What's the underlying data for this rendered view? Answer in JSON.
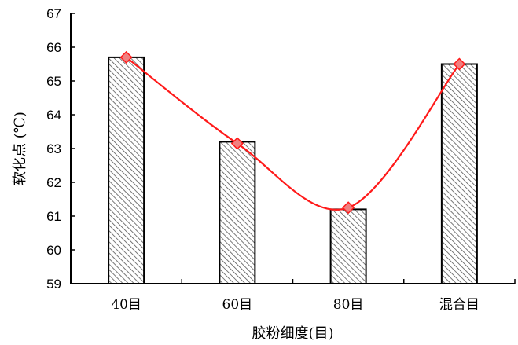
{
  "chart_data": {
    "type": "bar",
    "categories": [
      "40目",
      "60目",
      "80目",
      "混合目"
    ],
    "values": [
      65.7,
      63.2,
      61.2,
      65.5
    ],
    "line_values": [
      65.7,
      63.15,
      61.25,
      65.5
    ],
    "xlabel": "胶粉细度(目)",
    "ylabel": "软化点 (℃)",
    "ylim": [
      59,
      67
    ],
    "yticks": [
      59,
      60,
      61,
      62,
      63,
      64,
      65,
      66,
      67
    ],
    "grid": false,
    "legend": "none",
    "colors": {
      "bar_edge": "#000000",
      "hatch": "#555555",
      "line": "#ff1a1a",
      "marker": "#f08080"
    }
  }
}
